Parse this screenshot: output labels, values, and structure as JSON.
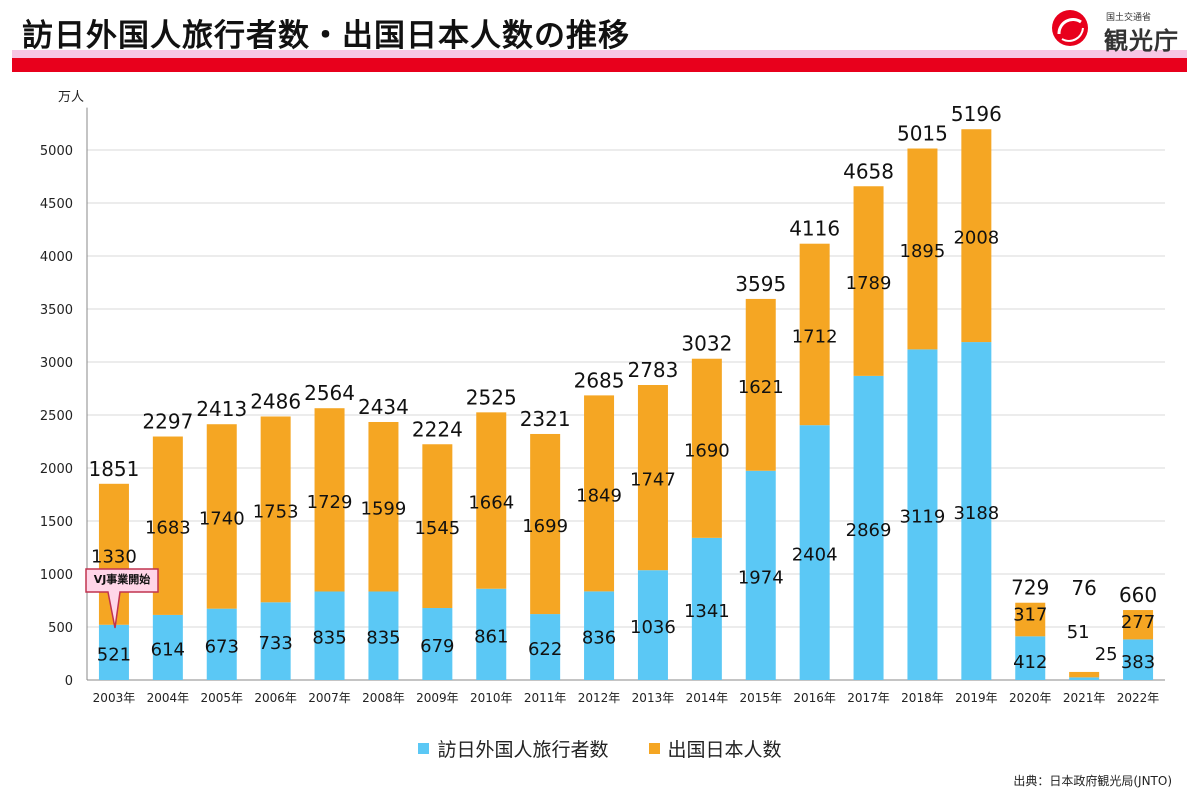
{
  "header": {
    "title": "訪日外国人旅行者数・出国日本人数の推移",
    "logo_ministry": "国土交通省",
    "logo_agency": "観光庁"
  },
  "unit_label": "万人",
  "callout": "VJ事業開始",
  "source": "出典：日本政府観光局(JNTO)",
  "colors": {
    "inbound": "#5bc8f5",
    "outbound": "#f5a623",
    "brand_red": "#e8001c",
    "brand_pink": "#f7c6e4"
  },
  "chart_data": {
    "type": "bar",
    "stacked": true,
    "categories": [
      "2003年",
      "2004年",
      "2005年",
      "2006年",
      "2007年",
      "2008年",
      "2009年",
      "2010年",
      "2011年",
      "2012年",
      "2013年",
      "2014年",
      "2015年",
      "2016年",
      "2017年",
      "2018年",
      "2019年",
      "2020年",
      "2021年",
      "2022年"
    ],
    "series": [
      {
        "name": "訪日外国人旅行者数",
        "values": [
          521,
          614,
          673,
          733,
          835,
          835,
          679,
          861,
          622,
          836,
          1036,
          1341,
          1974,
          2404,
          2869,
          3119,
          3188,
          412,
          25,
          383
        ]
      },
      {
        "name": "出国日本人数",
        "values": [
          1330,
          1683,
          1740,
          1753,
          1729,
          1599,
          1545,
          1664,
          1699,
          1849,
          1747,
          1690,
          1621,
          1712,
          1789,
          1895,
          2008,
          317,
          51,
          277
        ]
      }
    ],
    "totals": [
      1851,
      2297,
      2413,
      2486,
      2564,
      2434,
      2224,
      2525,
      2321,
      2685,
      2783,
      3032,
      3595,
      4116,
      4658,
      5015,
      5196,
      729,
      76,
      660
    ],
    "yticks": [
      0,
      500,
      1000,
      1500,
      2000,
      2500,
      3000,
      3500,
      4000,
      4500,
      5000
    ],
    "ylim": [
      0,
      5400
    ],
    "grid": true,
    "legend_position": "bottom-center"
  }
}
